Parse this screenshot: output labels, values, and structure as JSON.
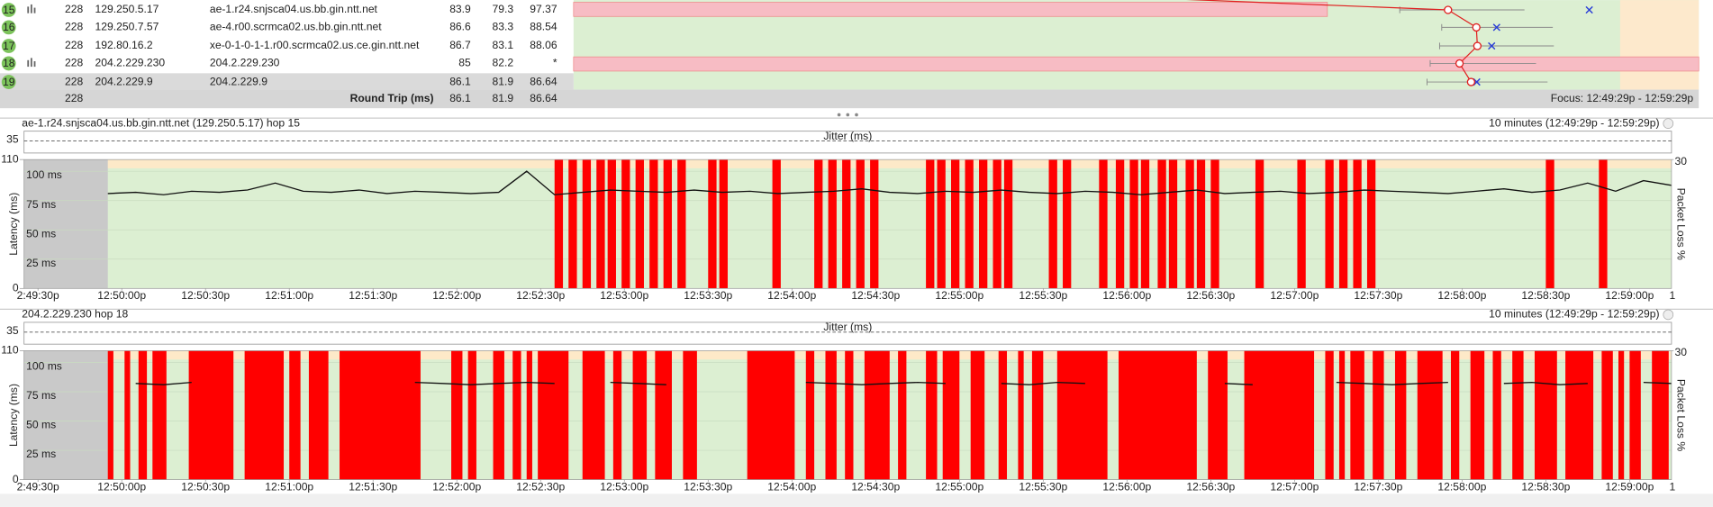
{
  "table": {
    "rows": [
      {
        "hop": 15,
        "count": 228,
        "ip": "129.250.5.17",
        "name": "ae-1.r24.snjsca04.us.bb.gin.ntt.net",
        "avg": 83.9,
        "min": 79.3,
        "cur": 97.37
      },
      {
        "hop": 16,
        "count": 228,
        "ip": "129.250.7.57",
        "name": "ae-4.r00.scrmca02.us.bb.gin.ntt.net",
        "avg": 86.6,
        "min": 83.3,
        "cur": 88.54
      },
      {
        "hop": 17,
        "count": 228,
        "ip": "192.80.16.2",
        "name": "xe-0-1-0-1-1.r00.scrmca02.us.ce.gin.ntt.net",
        "avg": 86.7,
        "min": 83.1,
        "cur": 88.06
      },
      {
        "hop": 18,
        "count": 228,
        "ip": "204.2.229.230",
        "name": "204.2.229.230",
        "avg": 85.0,
        "min": 82.2,
        "cur": "*"
      },
      {
        "hop": 19,
        "count": 228,
        "ip": "204.2.229.9",
        "name": "204.2.229.9",
        "avg": 86.1,
        "min": 81.9,
        "cur": 86.64
      }
    ],
    "footer": {
      "count": 228,
      "label": "Round Trip (ms)",
      "avg": 86.1,
      "min": 81.9,
      "cur": 86.64,
      "focus": "Focus: 12:49:29p - 12:59:29p"
    }
  },
  "graphs": [
    {
      "title": "ae-1.r24.snjsca04.us.bb.gin.ntt.net (129.250.5.17) hop 15",
      "range": "10 minutes (12:49:29p - 12:59:29p)",
      "jitter_label": "Jitter (ms)",
      "jitter_ticks": [
        35
      ],
      "y_label": "Latency (ms)",
      "y2_label": "Packet Loss %",
      "ylim": [
        0,
        110
      ],
      "yticks": [
        0,
        110
      ],
      "inner_ticks": [
        {
          "value": 25,
          "label": "25 ms"
        },
        {
          "value": 50,
          "label": "50 ms"
        },
        {
          "value": 75,
          "label": "75 ms"
        },
        {
          "value": 100,
          "label": "100 ms"
        }
      ],
      "y2lim": [
        0,
        30
      ],
      "y2ticks": [
        30
      ],
      "xlim": [
        -5,
        585
      ],
      "xticks": [
        {
          "value": 0,
          "label": "2:49:30p"
        },
        {
          "value": 30,
          "label": "12:50:00p"
        },
        {
          "value": 60,
          "label": "12:50:30p"
        },
        {
          "value": 90,
          "label": "12:51:00p"
        },
        {
          "value": 120,
          "label": "12:51:30p"
        },
        {
          "value": 150,
          "label": "12:52:00p"
        },
        {
          "value": 180,
          "label": "12:52:30p"
        },
        {
          "value": 210,
          "label": "12:53:00p"
        },
        {
          "value": 240,
          "label": "12:53:30p"
        },
        {
          "value": 270,
          "label": "12:54:00p"
        },
        {
          "value": 300,
          "label": "12:54:30p"
        },
        {
          "value": 330,
          "label": "12:55:00p"
        },
        {
          "value": 360,
          "label": "12:55:30p"
        },
        {
          "value": 390,
          "label": "12:56:00p"
        },
        {
          "value": 420,
          "label": "12:56:30p"
        },
        {
          "value": 450,
          "label": "12:57:00p"
        },
        {
          "value": 480,
          "label": "12:57:30p"
        },
        {
          "value": 510,
          "label": "12:58:00p"
        },
        {
          "value": 540,
          "label": "12:58:30p"
        },
        {
          "value": 570,
          "label": "12:59:00p"
        },
        {
          "value": 600,
          "label": "1"
        }
      ],
      "latency": {
        "x": [
          25,
          35,
          45,
          55,
          65,
          75,
          85,
          95,
          105,
          115,
          125,
          135,
          145,
          155,
          165,
          175,
          185,
          195,
          205,
          215,
          225,
          235,
          245,
          255,
          265,
          275,
          285,
          295,
          305,
          315,
          325,
          335,
          345,
          355,
          365,
          375,
          385,
          395,
          405,
          415,
          425,
          435,
          445,
          455,
          465,
          475,
          485,
          495,
          505,
          515,
          525,
          535,
          545,
          555,
          565,
          575,
          585
        ],
        "values": [
          81,
          82,
          80,
          83,
          82,
          84,
          90,
          83,
          82,
          84,
          81,
          83,
          82,
          81,
          82,
          100,
          80,
          82,
          84,
          83,
          82,
          84,
          82,
          83,
          81,
          82,
          83,
          85,
          82,
          81,
          83,
          82,
          84,
          82,
          81,
          83,
          82,
          80,
          82,
          84,
          81,
          82,
          83,
          81,
          82,
          84,
          83,
          82,
          81,
          83,
          85,
          82,
          84,
          90,
          83,
          92,
          88
        ]
      },
      "loss": {
        "value": 100,
        "periods": [
          [
            185,
            188
          ],
          [
            190,
            193
          ],
          [
            195,
            198
          ],
          [
            200,
            203
          ],
          [
            204,
            207
          ],
          [
            209,
            212
          ],
          [
            214,
            217
          ],
          [
            219,
            222
          ],
          [
            224,
            227
          ],
          [
            229,
            232
          ],
          [
            240,
            243
          ],
          [
            244,
            247
          ],
          [
            263,
            266
          ],
          [
            278,
            281
          ],
          [
            283,
            286
          ],
          [
            288,
            291
          ],
          [
            293,
            296
          ],
          [
            298,
            301
          ],
          [
            318,
            321
          ],
          [
            322,
            325
          ],
          [
            327,
            330
          ],
          [
            332,
            335
          ],
          [
            337,
            340
          ],
          [
            342,
            345
          ],
          [
            346,
            349
          ],
          [
            362,
            365
          ],
          [
            367,
            370
          ],
          [
            380,
            383
          ],
          [
            386,
            389
          ],
          [
            391,
            394
          ],
          [
            395,
            398
          ],
          [
            401,
            404
          ],
          [
            405,
            408
          ],
          [
            411,
            414
          ],
          [
            415,
            418
          ],
          [
            420,
            423
          ],
          [
            436,
            439
          ],
          [
            451,
            454
          ],
          [
            461,
            464
          ],
          [
            466,
            469
          ],
          [
            471,
            474
          ],
          [
            476,
            479
          ],
          [
            540,
            543
          ],
          [
            559,
            562
          ]
        ]
      }
    },
    {
      "title": "204.2.229.230 hop 18",
      "range": "10 minutes (12:49:29p - 12:59:29p)",
      "jitter_label": "Jitter (ms)",
      "jitter_ticks": [
        35
      ],
      "y_label": "Latency (ms)",
      "y2_label": "Packet Loss %",
      "ylim": [
        0,
        110
      ],
      "yticks": [
        0,
        110
      ],
      "inner_ticks": [
        {
          "value": 25,
          "label": "25 ms"
        },
        {
          "value": 50,
          "label": "50 ms"
        },
        {
          "value": 75,
          "label": "75 ms"
        },
        {
          "value": 100,
          "label": "100 ms"
        }
      ],
      "y2lim": [
        0,
        30
      ],
      "y2ticks": [
        30
      ],
      "xlim": [
        -5,
        585
      ],
      "xticks": [
        {
          "value": 0,
          "label": "2:49:30p"
        },
        {
          "value": 30,
          "label": "12:50:00p"
        },
        {
          "value": 60,
          "label": "12:50:30p"
        },
        {
          "value": 90,
          "label": "12:51:00p"
        },
        {
          "value": 120,
          "label": "12:51:30p"
        },
        {
          "value": 150,
          "label": "12:52:00p"
        },
        {
          "value": 180,
          "label": "12:52:30p"
        },
        {
          "value": 210,
          "label": "12:53:00p"
        },
        {
          "value": 240,
          "label": "12:53:30p"
        },
        {
          "value": 270,
          "label": "12:54:00p"
        },
        {
          "value": 300,
          "label": "12:54:30p"
        },
        {
          "value": 330,
          "label": "12:55:00p"
        },
        {
          "value": 360,
          "label": "12:55:30p"
        },
        {
          "value": 390,
          "label": "12:56:00p"
        },
        {
          "value": 420,
          "label": "12:56:30p"
        },
        {
          "value": 450,
          "label": "12:57:00p"
        },
        {
          "value": 480,
          "label": "12:57:30p"
        },
        {
          "value": 510,
          "label": "12:58:00p"
        },
        {
          "value": 540,
          "label": "12:58:30p"
        },
        {
          "value": 570,
          "label": "12:59:00p"
        },
        {
          "value": 600,
          "label": "1"
        }
      ],
      "latency": {
        "x": [
          25,
          35,
          45,
          55,
          65,
          75,
          85,
          95,
          105,
          115,
          125,
          135,
          145,
          155,
          165,
          175,
          185,
          195,
          205,
          215,
          225,
          235,
          245,
          255,
          265,
          275,
          285,
          295,
          305,
          315,
          325,
          335,
          345,
          355,
          365,
          375,
          385,
          395,
          405,
          415,
          425,
          435,
          445,
          455,
          465,
          475,
          485,
          495,
          505,
          515,
          525,
          535,
          545,
          555,
          565,
          575,
          585
        ],
        "values": [
          null,
          82,
          81,
          83,
          null,
          null,
          null,
          81,
          null,
          null,
          null,
          83,
          82,
          81,
          82,
          83,
          82,
          null,
          83,
          82,
          81,
          null,
          82,
          null,
          null,
          83,
          82,
          81,
          82,
          83,
          82,
          null,
          82,
          81,
          83,
          82,
          null,
          null,
          null,
          null,
          82,
          81,
          null,
          null,
          83,
          82,
          81,
          82,
          83,
          null,
          82,
          83,
          81,
          82,
          null,
          83,
          82
        ]
      },
      "loss": {
        "value": 100,
        "periods": [
          [
            25,
            27
          ],
          [
            31,
            33
          ],
          [
            36,
            39
          ],
          [
            41,
            46
          ],
          [
            54,
            70
          ],
          [
            74,
            88
          ],
          [
            90,
            94
          ],
          [
            97,
            104
          ],
          [
            108,
            137
          ],
          [
            148,
            152
          ],
          [
            154,
            157
          ],
          [
            163,
            167
          ],
          [
            170,
            173
          ],
          [
            175,
            177
          ],
          [
            179,
            190
          ],
          [
            195,
            203
          ],
          [
            206,
            209
          ],
          [
            213,
            218
          ],
          [
            221,
            227
          ],
          [
            231,
            236
          ],
          [
            254,
            271
          ],
          [
            275,
            278
          ],
          [
            282,
            286
          ],
          [
            289,
            292
          ],
          [
            296,
            305
          ],
          [
            308,
            311
          ],
          [
            318,
            322
          ],
          [
            324,
            330
          ],
          [
            334,
            339
          ],
          [
            344,
            347
          ],
          [
            351,
            353
          ],
          [
            356,
            360
          ],
          [
            365,
            383
          ],
          [
            387,
            415
          ],
          [
            419,
            426
          ],
          [
            432,
            457
          ],
          [
            461,
            464
          ],
          [
            466,
            468
          ],
          [
            470,
            475
          ],
          [
            478,
            482
          ],
          [
            486,
            490
          ],
          [
            494,
            503
          ],
          [
            506,
            509
          ],
          [
            513,
            518
          ],
          [
            521,
            524
          ],
          [
            528,
            532
          ],
          [
            536,
            544
          ],
          [
            547,
            557
          ],
          [
            560,
            564
          ],
          [
            566,
            568
          ],
          [
            570,
            574
          ],
          [
            578,
            584
          ]
        ]
      }
    }
  ]
}
